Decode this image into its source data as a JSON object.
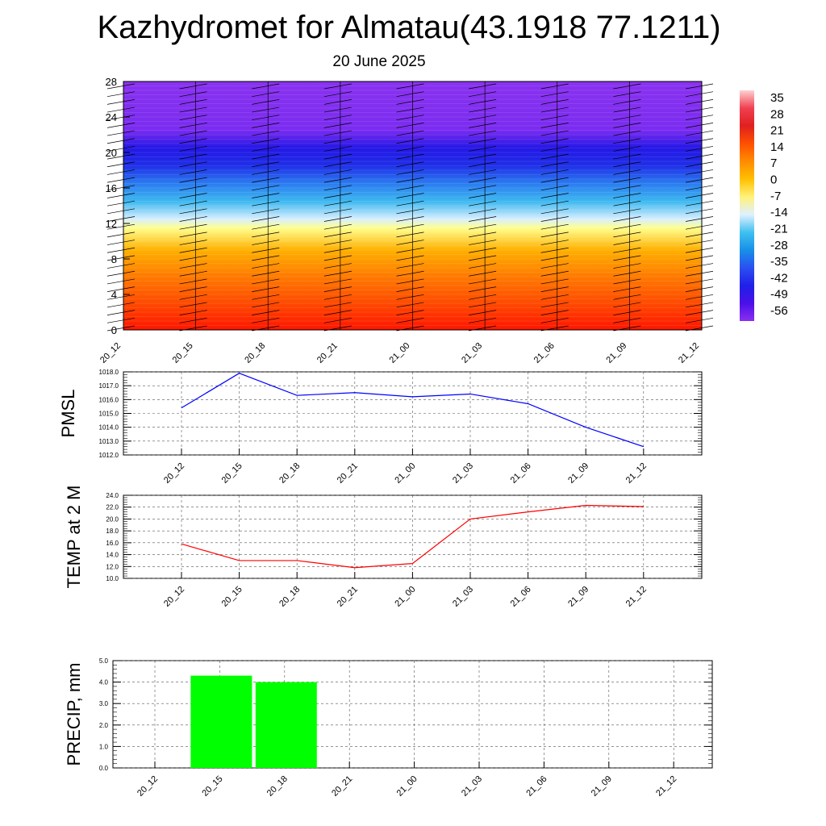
{
  "header": {
    "title": "Kazhydromet for Almatau(43.1918 77.1211)",
    "subtitle": "20 June 2025"
  },
  "colors": {
    "pmsl_line": "#0000ff",
    "temp_line": "#ff0000",
    "precip_bar": "#00ff00",
    "grid": "#555555"
  },
  "chart_data": [
    {
      "type": "heatmap",
      "name": "vertical-cross-section",
      "x_ticks": [
        "20_12",
        "20_15",
        "20_18",
        "20_21",
        "21_00",
        "21_03",
        "21_06",
        "21_09",
        "21_12"
      ],
      "y_ticks": [
        "0",
        "4",
        "8",
        "12",
        "16",
        "20",
        "24",
        "28"
      ],
      "ylim": [
        0,
        28
      ],
      "colorbar": {
        "labels": [
          "35",
          "28",
          "21",
          "14",
          "7",
          "0",
          "-7",
          "-14",
          "-21",
          "-28",
          "-35",
          "-42",
          "-49",
          "-56"
        ],
        "colors": [
          "#ffd0d0",
          "#f04050",
          "#e02020",
          "#ff5000",
          "#ff8c00",
          "#ffc000",
          "#fff27a",
          "#e0f0ff",
          "#40c0f0",
          "#1890e8",
          "#2a50f0",
          "#2020e8",
          "#4a10e8",
          "#8a30f0"
        ]
      },
      "bands": [
        {
          "level": 0,
          "color": "#ff1500"
        },
        {
          "level": 3,
          "color": "#ff4a00"
        },
        {
          "level": 6,
          "color": "#ff7a00"
        },
        {
          "level": 9,
          "color": "#ffb000"
        },
        {
          "level": 11.5,
          "color": "#ffff90"
        },
        {
          "level": 12.5,
          "color": "#d8efff"
        },
        {
          "level": 14.5,
          "color": "#3cb8f0"
        },
        {
          "level": 16.5,
          "color": "#2b7cf0"
        },
        {
          "level": 18.5,
          "color": "#1f2fe8"
        },
        {
          "level": 20.5,
          "color": "#2417e6"
        },
        {
          "level": 22.5,
          "color": "#7a2cf0"
        },
        {
          "level": 28,
          "color": "#8a32f0"
        }
      ]
    },
    {
      "type": "line",
      "ylabel": "PMSL",
      "categories": [
        "20_12",
        "20_15",
        "20_18",
        "20_21",
        "21_00",
        "21_03",
        "21_06",
        "21_09",
        "21_12"
      ],
      "values": [
        1015.4,
        1017.9,
        1016.3,
        1016.5,
        1016.2,
        1016.4,
        1015.7,
        1014.0,
        1012.6
      ],
      "ylim": [
        1012.0,
        1018.0
      ],
      "y_ticks": [
        "1012.0",
        "1013.0",
        "1014.0",
        "1015.0",
        "1016.0",
        "1017.0",
        "1018.0"
      ]
    },
    {
      "type": "line",
      "ylabel": "TEMP at 2 M",
      "categories": [
        "20_12",
        "20_15",
        "20_18",
        "20_21",
        "21_00",
        "21_03",
        "21_06",
        "21_09",
        "21_12"
      ],
      "values": [
        15.8,
        13.0,
        13.0,
        11.8,
        12.5,
        20.0,
        21.2,
        22.3,
        22.1
      ],
      "ylim": [
        10.0,
        24.0
      ],
      "y_ticks": [
        "10.0",
        "12.0",
        "14.0",
        "16.0",
        "18.0",
        "20.0",
        "22.0",
        "24.0"
      ]
    },
    {
      "type": "bar",
      "ylabel": "PRECIP, mm",
      "categories": [
        "20_12",
        "20_15",
        "20_18",
        "20_21",
        "21_00",
        "21_03",
        "21_06",
        "21_09",
        "21_12"
      ],
      "values": [
        0,
        4.3,
        4.0,
        0,
        0,
        0,
        0,
        0,
        0
      ],
      "ylim": [
        0.0,
        5.0
      ],
      "y_ticks": [
        "0.0",
        "1.0",
        "2.0",
        "3.0",
        "4.0",
        "5.0"
      ]
    }
  ]
}
